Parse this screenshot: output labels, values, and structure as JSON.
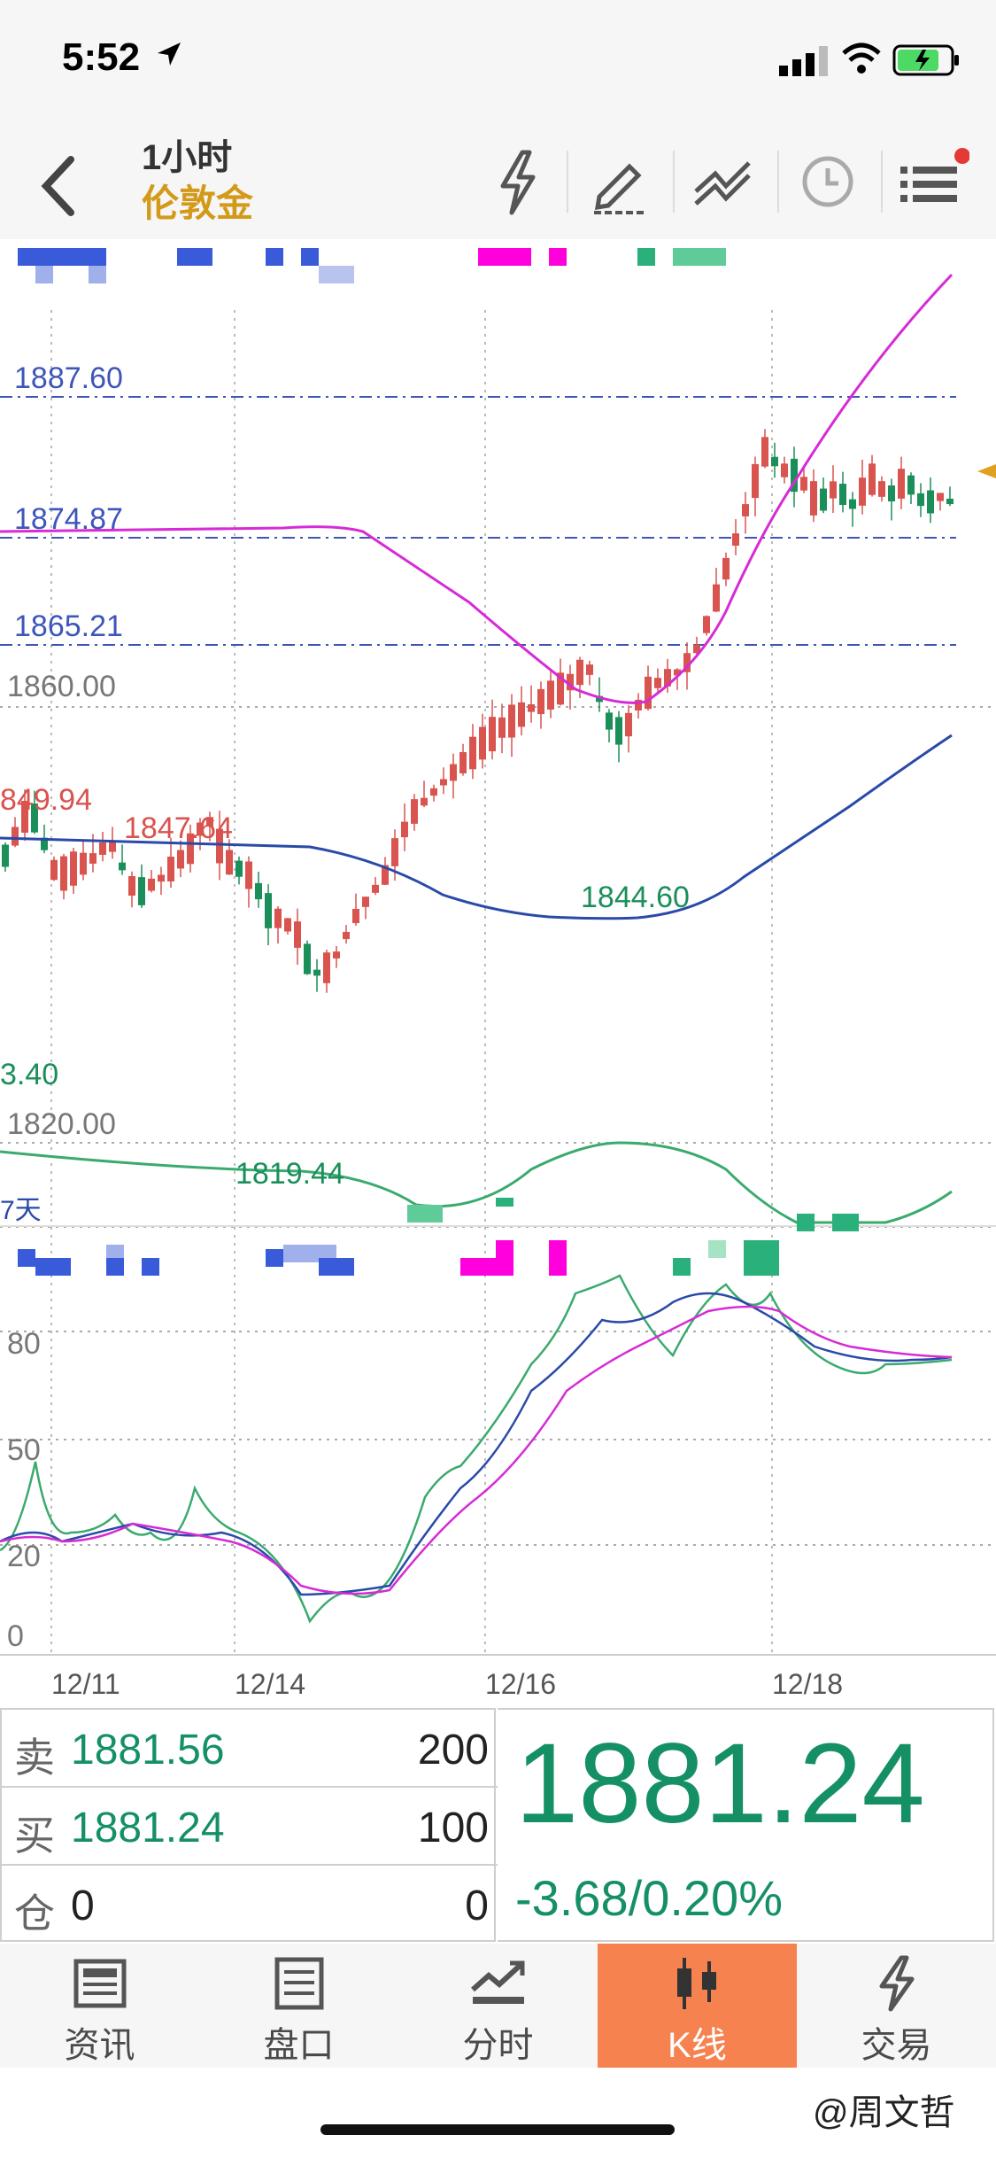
{
  "status": {
    "time": "5:52"
  },
  "nav": {
    "title": "1小时",
    "subtitle": "伦敦金"
  },
  "chart": {
    "price_labels": [
      {
        "text": "1887.60"
      },
      {
        "text": "1874.87"
      },
      {
        "text": "1865.21"
      },
      {
        "text": "1860.00"
      },
      {
        "text": "849.94"
      },
      {
        "text": "1847.64"
      },
      {
        "text": "1844.60"
      },
      {
        "text": "3.40"
      },
      {
        "text": "1820.00"
      },
      {
        "text": "1819.44"
      },
      {
        "text": "7天"
      }
    ],
    "osc_labels": [
      "80",
      "50",
      "20",
      "0"
    ],
    "dates": [
      "12/11",
      "12/14",
      "12/16",
      "12/18"
    ],
    "colors": {
      "up": "#d9534f",
      "down": "#1a8f5a",
      "ma_pink": "#d62bd6",
      "ma_blue": "#2a4aa8",
      "ma_green": "#3aaa6e",
      "level_blue": "#3e56b8"
    }
  },
  "quote": {
    "sell_label": "卖",
    "sell_price": "1881.56",
    "sell_volume": "200",
    "buy_label": "买",
    "buy_price": "1881.24",
    "buy_volume": "100",
    "position_label": "仓",
    "position_value": "0",
    "position_volume": "0",
    "last_price": "1881.24",
    "change": "-3.68/0.20%"
  },
  "tabs": [
    {
      "label": "资讯",
      "icon": "newspaper-icon"
    },
    {
      "label": "盘口",
      "icon": "orderbook-icon"
    },
    {
      "label": "分时",
      "icon": "timeshare-icon"
    },
    {
      "label": "K线",
      "icon": "candlestick-icon"
    },
    {
      "label": "交易",
      "icon": "trade-icon"
    }
  ],
  "watermark": "@周文哲"
}
